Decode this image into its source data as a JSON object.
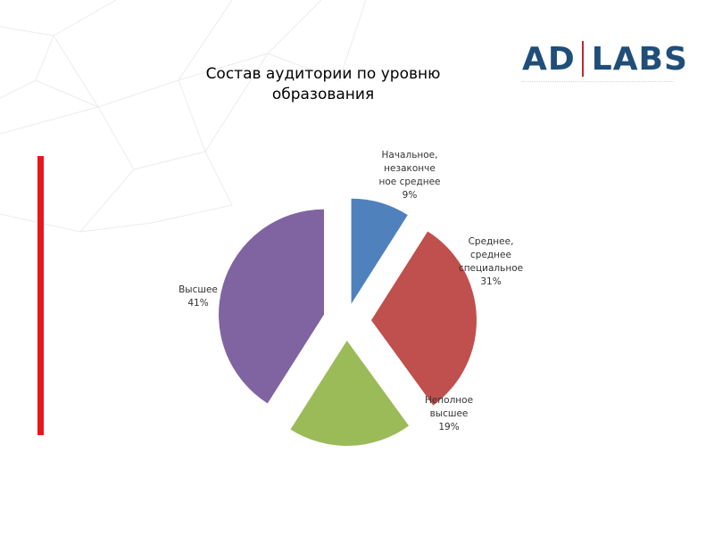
{
  "logo": {
    "left": "AD",
    "right": "LABS"
  },
  "colors": {
    "accent_bar": "#e8161b",
    "logo_text": "#1f4e79",
    "logo_separator": "#c0272d"
  },
  "chart_data": {
    "type": "pie",
    "title": "Состав аудитории по уровню образования",
    "slices": [
      {
        "label_lines": [
          "Начальное,",
          "незаконче",
          "ное среднее",
          "9%"
        ],
        "value": 9,
        "color": "#4f81bd"
      },
      {
        "label_lines": [
          "Среднее,",
          "среднее",
          "специальное",
          "31%"
        ],
        "value": 31,
        "color": "#c0504d"
      },
      {
        "label_lines": [
          "Неполное",
          "высшее",
          "19%"
        ],
        "value": 19,
        "color": "#9bbb59"
      },
      {
        "label_lines": [
          "Высшее",
          "41%"
        ],
        "value": 41,
        "color": "#8064a2"
      }
    ]
  }
}
